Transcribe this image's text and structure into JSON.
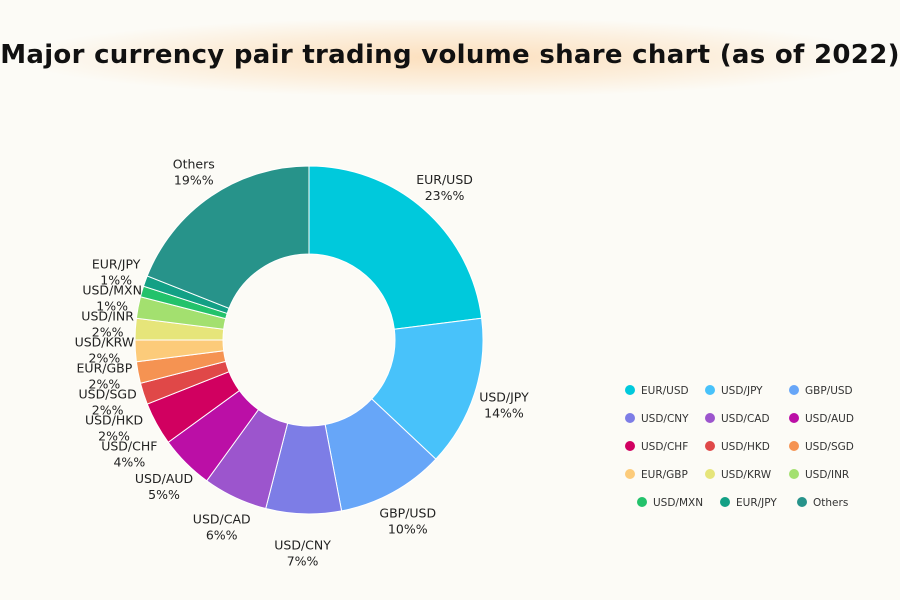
{
  "chart_data": {
    "type": "pie",
    "variant": "donut",
    "title": "Major currency pair trading volume share chart (as of 2022)",
    "legend_position": "right",
    "slices": [
      {
        "label": "EUR/USD",
        "value": 23,
        "display": "23%%",
        "color": "#00c9dc"
      },
      {
        "label": "USD/JPY",
        "value": 14,
        "display": "14%%",
        "color": "#48c2fa"
      },
      {
        "label": "GBP/USD",
        "value": 10,
        "display": "10%%",
        "color": "#67a6f8"
      },
      {
        "label": "USD/CNY",
        "value": 7,
        "display": "7%%",
        "color": "#7d7de6"
      },
      {
        "label": "USD/CAD",
        "value": 6,
        "display": "6%%",
        "color": "#9c55cd"
      },
      {
        "label": "USD/AUD",
        "value": 5,
        "display": "5%%",
        "color": "#bb0fa6"
      },
      {
        "label": "USD/CHF",
        "value": 4,
        "display": "4%%",
        "color": "#d10060"
      },
      {
        "label": "USD/HKD",
        "value": 2,
        "display": "2%%",
        "color": "#e04848"
      },
      {
        "label": "USD/SGD",
        "value": 2,
        "display": "2%%",
        "color": "#f59352"
      },
      {
        "label": "EUR/GBP",
        "value": 2,
        "display": "2%%",
        "color": "#fccb7a"
      },
      {
        "label": "USD/KRW",
        "value": 2,
        "display": "2%%",
        "color": "#e6e57a"
      },
      {
        "label": "USD/INR",
        "value": 2,
        "display": "2%%",
        "color": "#a3e06f"
      },
      {
        "label": "USD/MXN",
        "value": 1,
        "display": "1%%",
        "color": "#23c26b"
      },
      {
        "label": "EUR/JPY",
        "value": 1,
        "display": "1%%",
        "color": "#13a085"
      },
      {
        "label": "Others",
        "value": 19,
        "display": "19%%",
        "color": "#27938a"
      }
    ]
  }
}
